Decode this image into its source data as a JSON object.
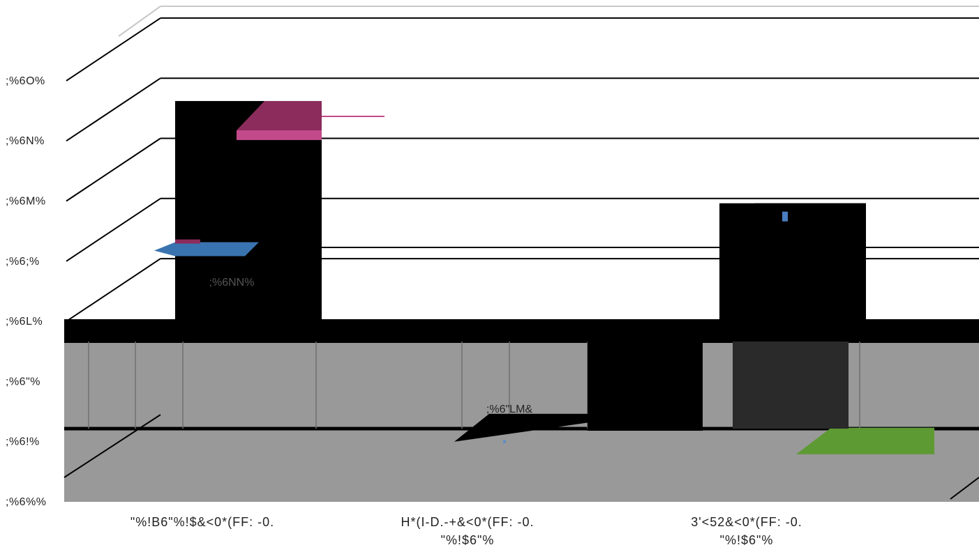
{
  "chart_data": {
    "type": "bar",
    "title": "",
    "xlabel": "",
    "ylabel": "",
    "y_ticks": [
      ";%6%%",
      ";%6!%",
      ";%6\"%",
      ";%6L%",
      ";%6;%",
      ";%6M%",
      ";%6N%",
      ";%6O%"
    ],
    "ylim": [
      0,
      7
    ],
    "grid": true,
    "categories": [
      {
        "line1": "\"%!B6\"%!$&<0*(FF: -0.",
        "line2": ""
      },
      {
        "line1": "H*(I-D.-+&<0*(FF: -0.",
        "line2": "\"%!$6\"%"
      },
      {
        "line1": "3'<52&<0*(FF: -0.",
        "line2": "\"%!$6\"%"
      }
    ],
    "bars": [
      {
        "category_index": 0,
        "value": 6.2,
        "label": ";%6NN%",
        "segments": [
          {
            "color": "#8b2c5c",
            "value": 6.2
          },
          {
            "color": "#2e6ea6",
            "value": 4.2
          }
        ]
      },
      {
        "category_index": 1,
        "value": 1.0,
        "label": ";%6\"LM&",
        "segments": [
          {
            "color": "#5b8dc8",
            "value": 1.0
          }
        ]
      },
      {
        "category_index": 2,
        "value": 4.5,
        "label": "",
        "segments": [
          {
            "color": "#5e9a34",
            "value": 1.0
          },
          {
            "color": "#4a7ec0",
            "value": 4.5
          }
        ]
      }
    ],
    "colors": {
      "bar_body": "#000000",
      "floor": "#999999",
      "grid": "#000000",
      "back_wall_top": "#c8c8c8",
      "pink_cap": "#c24a8a",
      "pink_top": "#8b2c5c",
      "blue_cap": "#3a74b0",
      "green_top": "#5e9a34"
    }
  }
}
